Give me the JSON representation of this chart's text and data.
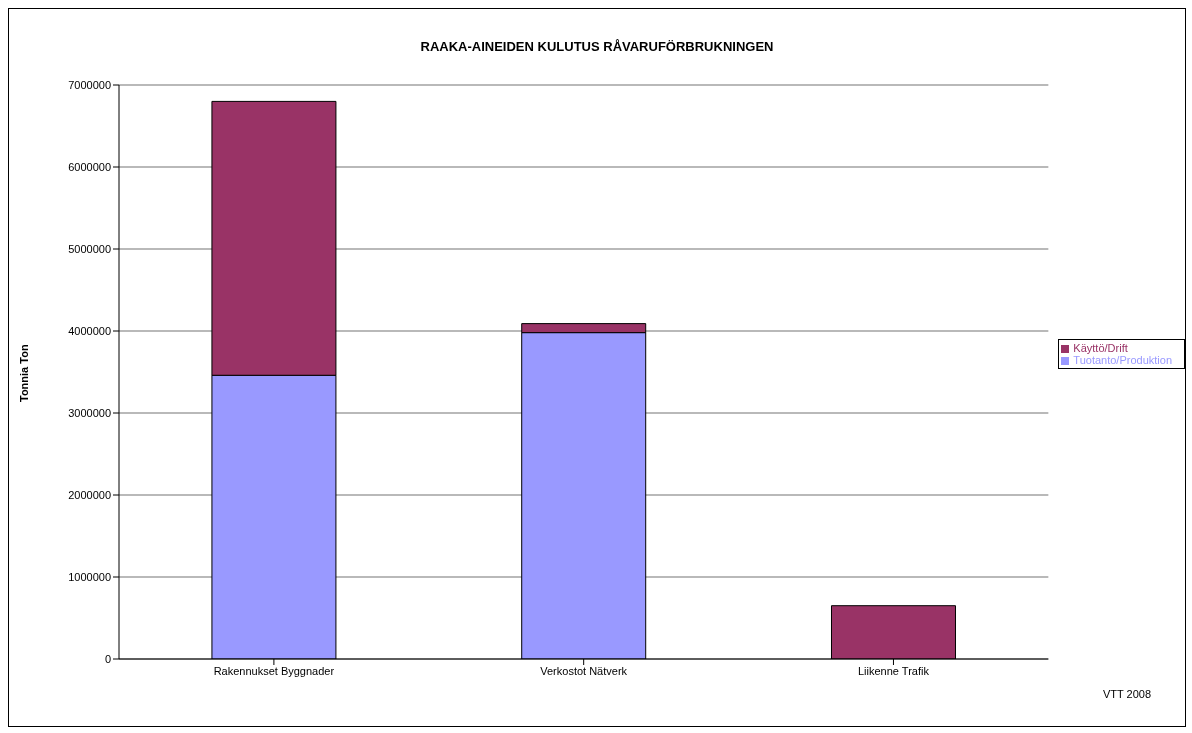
{
  "chart_data": {
    "type": "bar",
    "title": "RAAKA-AINEIDEN KULUTUS RÅVARUFÖRBRUKNINGEN",
    "ylabel": "Tonnia Ton",
    "categories": [
      "Rakennukset Byggnader",
      "Verkostot Nätverk",
      "Liikenne Trafik"
    ],
    "stacked": true,
    "series": [
      {
        "name": "Tuotanto/Produktion",
        "color": "#9999ff",
        "values": [
          3460000,
          3980000,
          0
        ]
      },
      {
        "name": "Käyttö/Drift",
        "color": "#993366",
        "values": [
          3340000,
          110000,
          650000
        ]
      }
    ],
    "ylim": [
      0,
      7000000
    ],
    "yticks": [
      0,
      1000000,
      2000000,
      3000000,
      4000000,
      5000000,
      6000000,
      7000000
    ],
    "grid": "y",
    "legend": "right",
    "annotations": [
      "VTT 2008"
    ]
  }
}
